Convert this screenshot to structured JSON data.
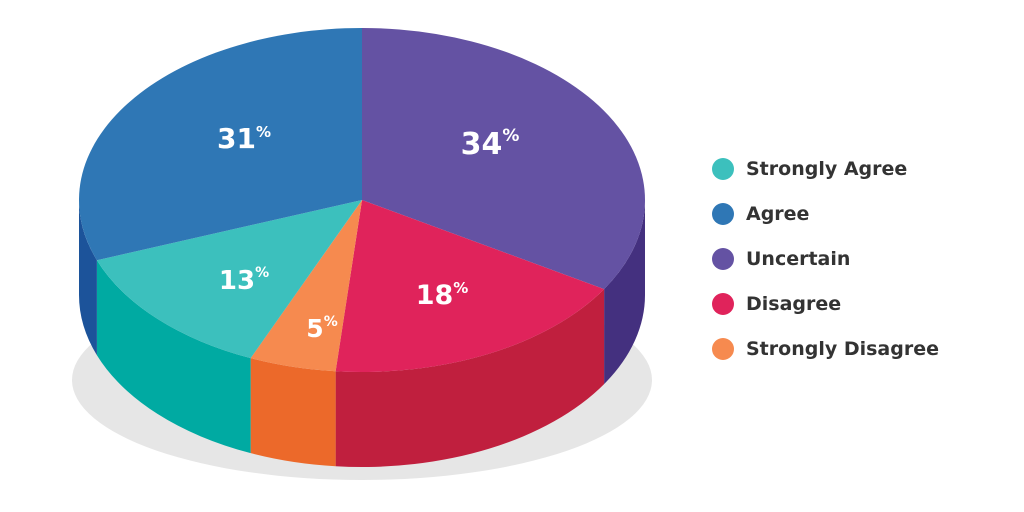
{
  "chart_data": {
    "type": "pie",
    "title": "",
    "slices": [
      {
        "label": "Strongly Agree",
        "value": 13,
        "display": "13",
        "top_color": "#3CC0BD",
        "side_color": "#00AAA2"
      },
      {
        "label": "Agree",
        "value": 31,
        "display": "31",
        "top_color": "#2F77B5",
        "side_color": "#1C539A"
      },
      {
        "label": "Uncertain",
        "value": 34,
        "display": "34",
        "top_color": "#6452A3",
        "side_color": "#44307F"
      },
      {
        "label": "Disagree",
        "value": 18,
        "display": "18",
        "top_color": "#E0235B",
        "side_color": "#C01F3E"
      },
      {
        "label": "Strongly Disagree",
        "value": 5,
        "display": "5",
        "top_color": "#F68A4F",
        "side_color": "#EC692A"
      }
    ],
    "percent_sign": "%",
    "legend_position": "right",
    "style": "3d"
  }
}
